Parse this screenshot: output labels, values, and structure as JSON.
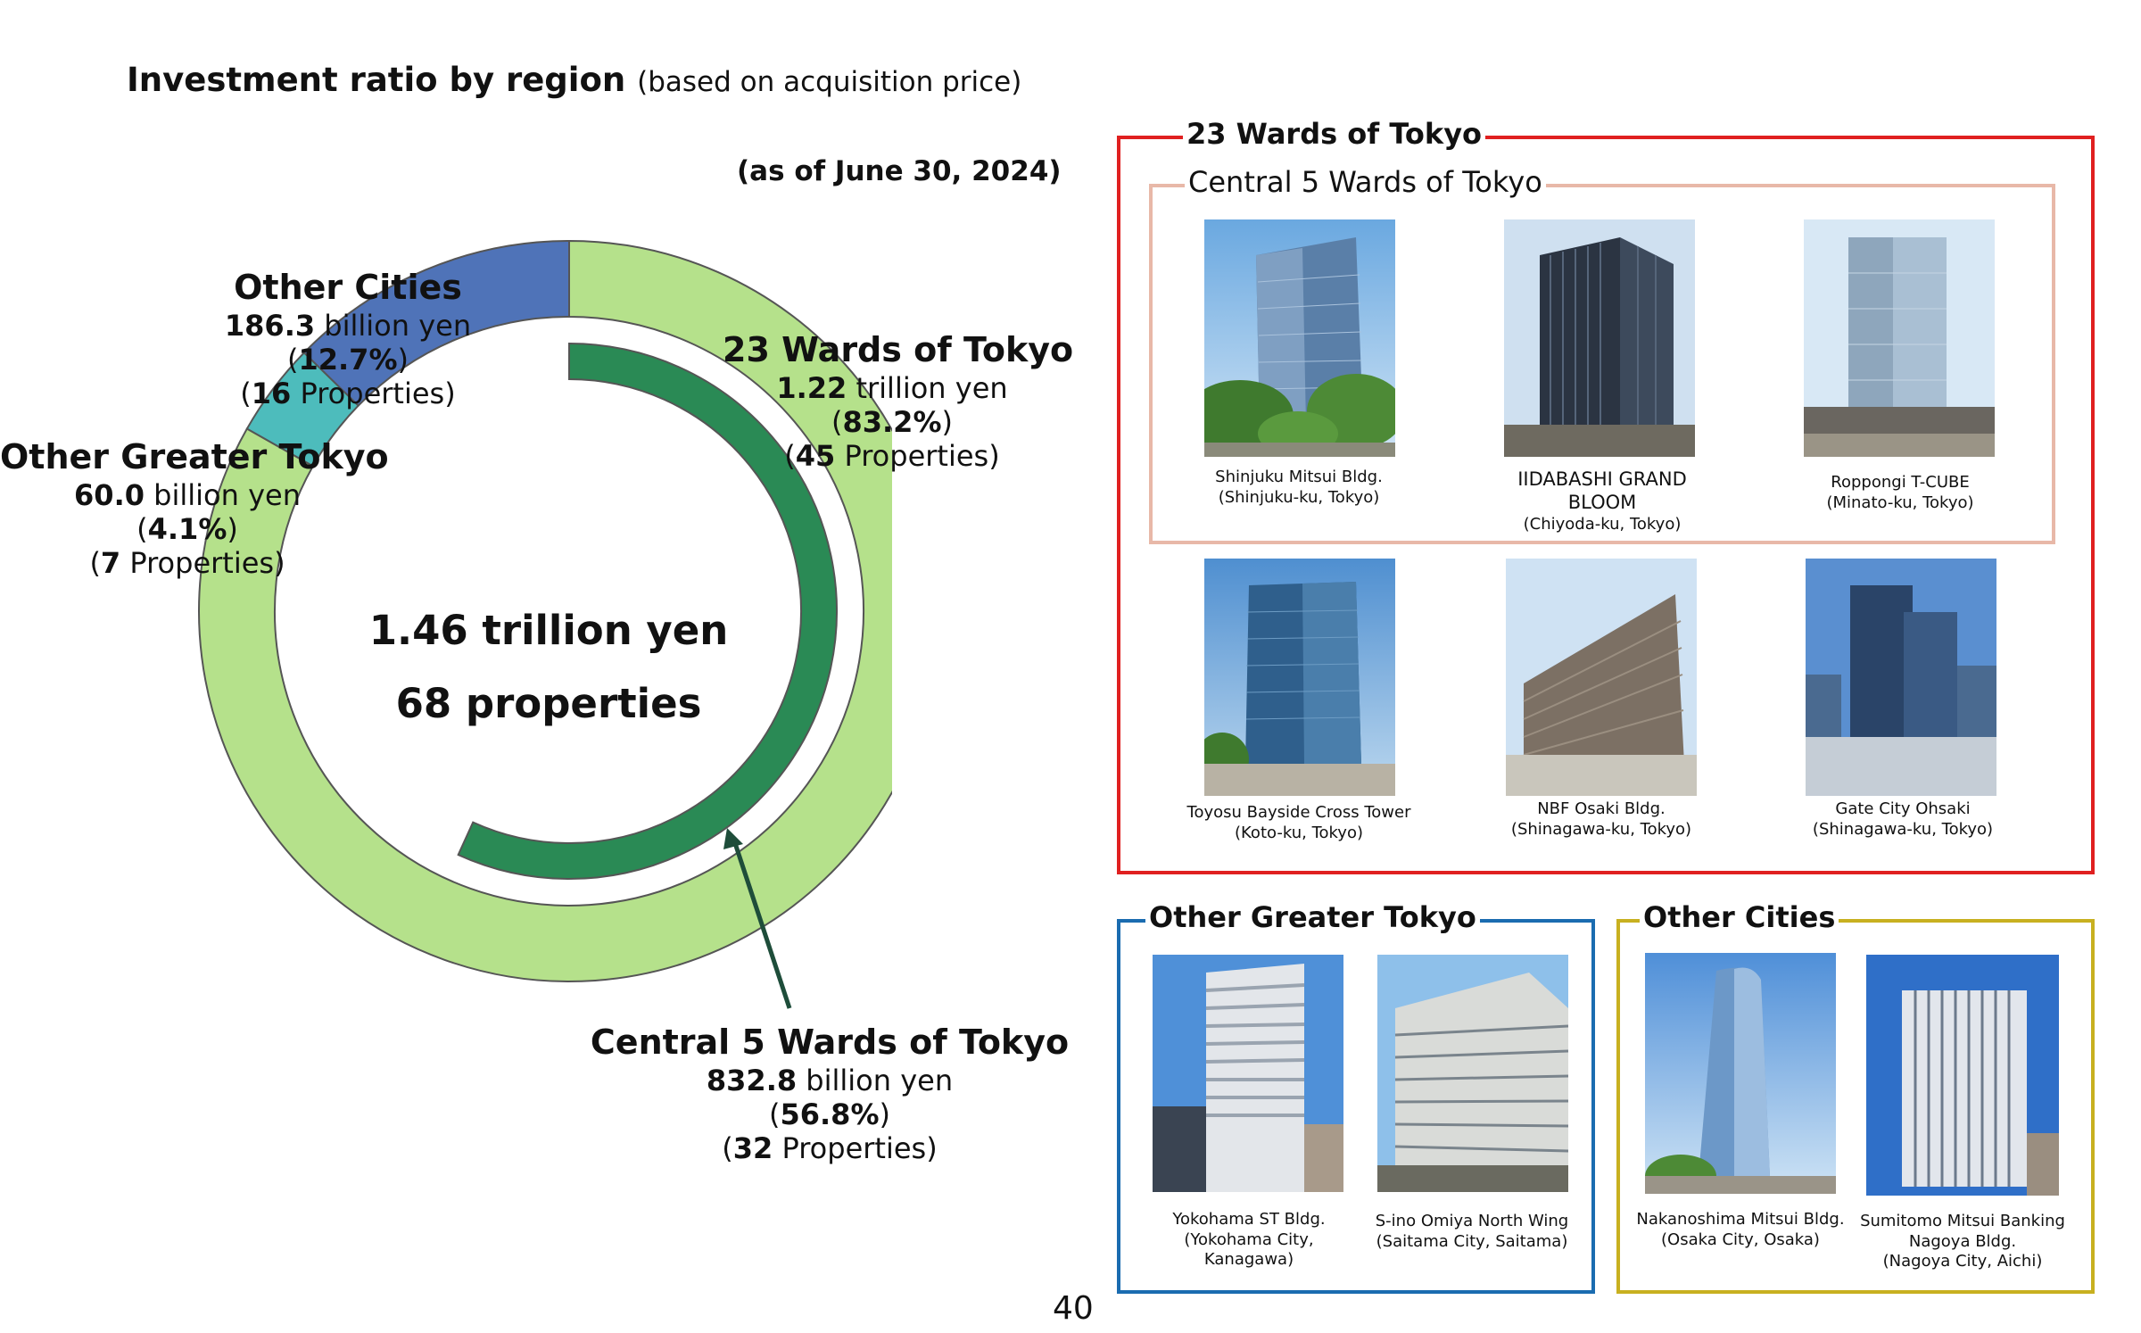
{
  "header": {
    "title": "Investment ratio by region",
    "subtitle": "(based on acquisition price)",
    "as_of": "(as of June 30, 2024)"
  },
  "chart_data": {
    "type": "pie",
    "style": "nested-donut",
    "center_text": [
      "1.46 trillion yen",
      "68 properties"
    ],
    "outer_ring": [
      {
        "name": "23 Wards of Tokyo",
        "amount": "1.22",
        "unit": "trillion yen",
        "percent": 83.2,
        "percent_label": "83.2%",
        "properties": "45",
        "color": "#b5e18b"
      },
      {
        "name": "Other Greater Tokyo",
        "amount": "60.0",
        "unit": "billion yen",
        "percent": 4.1,
        "percent_label": "4.1%",
        "properties": "7",
        "color": "#4dbcbc"
      },
      {
        "name": "Other Cities",
        "amount": "186.3",
        "unit": "billion yen",
        "percent": 12.7,
        "percent_label": "12.7%",
        "properties": "16",
        "color": "#4f73b8"
      }
    ],
    "inner_ring": [
      {
        "name": "Central 5 Wards of Tokyo",
        "amount": "832.8",
        "unit": "billion yen",
        "percent": 56.8,
        "percent_label": "56.8%",
        "properties": "32",
        "color": "#2a8a55"
      }
    ],
    "properties_word": "Properties"
  },
  "regions": {
    "tokyo23": {
      "title": "23 Wards of Tokyo",
      "color": "#e02020",
      "central5": {
        "title": "Central 5 Wards of Tokyo",
        "color": "#e8b8a8",
        "buildings": [
          {
            "name": "Shinjuku Mitsui Bldg.",
            "location": "(Shinjuku-ku, Tokyo)"
          },
          {
            "name": "IIDABASHI GRAND",
            "name2": "BLOOM",
            "location": "(Chiyoda-ku, Tokyo)"
          },
          {
            "name": "Roppongi T-CUBE",
            "location": "(Minato-ku, Tokyo)"
          }
        ]
      },
      "buildings": [
        {
          "name": "Toyosu Bayside Cross Tower",
          "location": "(Koto-ku, Tokyo)"
        },
        {
          "name": "NBF Osaki Bldg.",
          "location": "(Shinagawa-ku, Tokyo)"
        },
        {
          "name": "Gate City Ohsaki",
          "location": "(Shinagawa-ku, Tokyo)"
        }
      ]
    },
    "greater": {
      "title": "Other Greater Tokyo",
      "color": "#1a6cb0",
      "buildings": [
        {
          "name": "Yokohama ST Bldg.",
          "location": "(Yokohama City,",
          "location2": "Kanagawa)"
        },
        {
          "name": "S-ino Omiya North Wing",
          "location": "(Saitama City, Saitama)"
        }
      ]
    },
    "cities": {
      "title": "Other Cities",
      "color": "#c8b020",
      "buildings": [
        {
          "name": "Nakanoshima Mitsui Bldg.",
          "location": "(Osaka City, Osaka)"
        },
        {
          "name": "Sumitomo Mitsui Banking",
          "name2": "Nagoya Bldg.",
          "location": "(Nagoya City, Aichi)"
        }
      ]
    }
  },
  "page_number": "40"
}
